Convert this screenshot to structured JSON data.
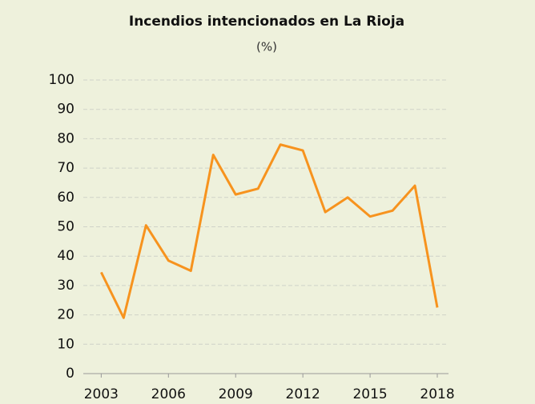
{
  "chart_data": {
    "type": "line",
    "title": "Incendios intencionados en La Rioja",
    "subtitle": "(%)",
    "x": [
      2003,
      2004,
      2005,
      2006,
      2007,
      2008,
      2009,
      2010,
      2011,
      2012,
      2013,
      2014,
      2015,
      2016,
      2017,
      2018
    ],
    "series": [
      {
        "name": "Incendios intencionados",
        "color": "#f7931e",
        "values": [
          34.5,
          19,
          50.5,
          38.5,
          35,
          74.5,
          61,
          63,
          78,
          76,
          55,
          60,
          53.5,
          55.5,
          64,
          22.5
        ]
      }
    ],
    "xlim": [
      2002.2,
      2018.5
    ],
    "xticks": [
      2003,
      2006,
      2009,
      2012,
      2015,
      2018
    ],
    "ylim": [
      0,
      100
    ],
    "yticks": [
      0,
      10,
      20,
      30,
      40,
      50,
      60,
      70,
      80,
      90,
      100
    ],
    "grid": true
  }
}
